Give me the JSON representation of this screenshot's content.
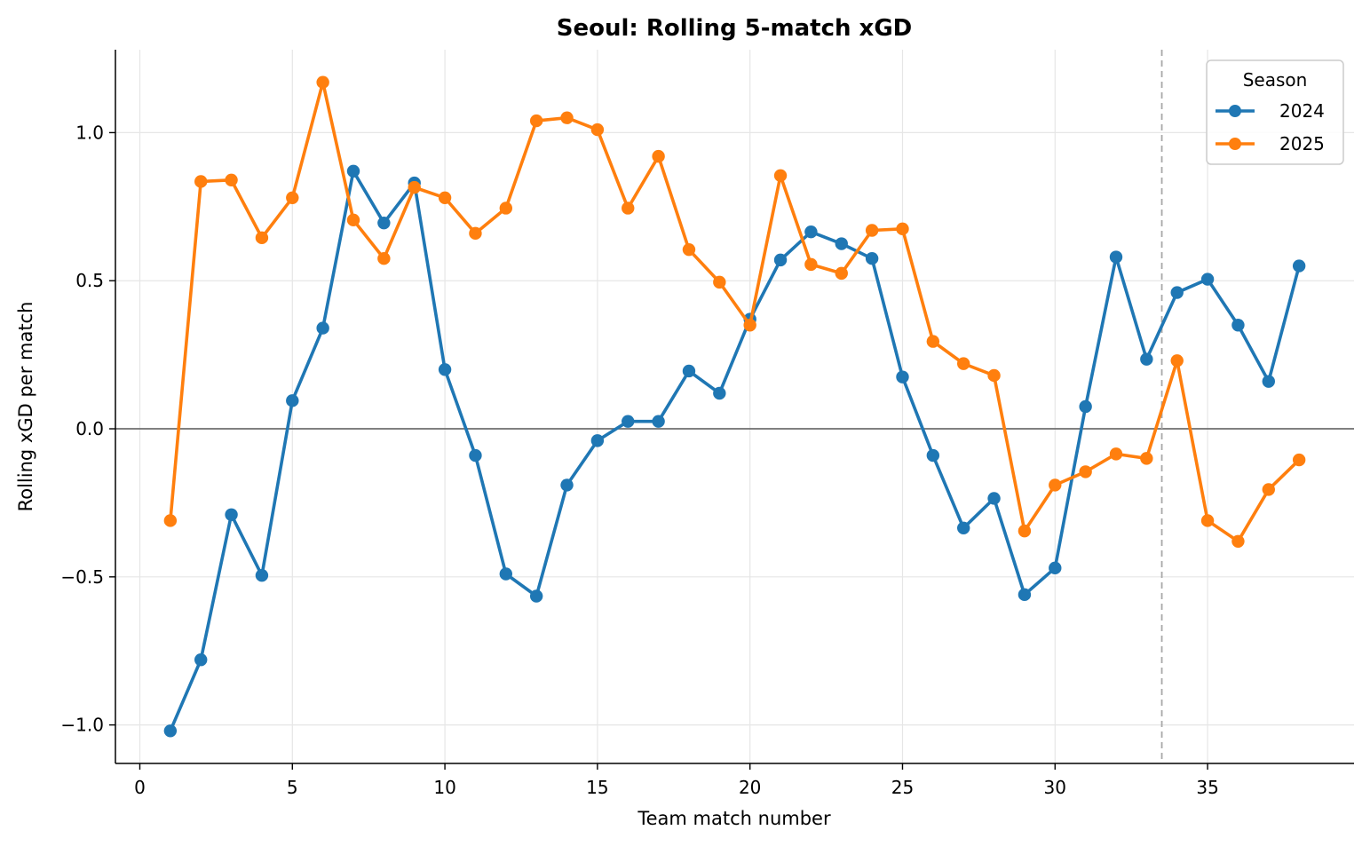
{
  "chart_data": {
    "type": "line",
    "title": "Seoul: Rolling 5-match xGD",
    "xlabel": "Team match number",
    "ylabel": "Rolling xGD per match",
    "xlim": [
      -0.8,
      39.8
    ],
    "ylim": [
      -1.13,
      1.28
    ],
    "xticks": [
      0,
      5,
      10,
      15,
      20,
      25,
      30,
      35
    ],
    "xtick_labels": [
      "0",
      "5",
      "10",
      "15",
      "20",
      "25",
      "30",
      "35"
    ],
    "yticks": [
      -1.0,
      -0.5,
      0.0,
      0.5,
      1.0
    ],
    "ytick_labels": [
      "−1.0",
      "−0.5",
      "0.0",
      "0.5",
      "1.0"
    ],
    "grid": true,
    "reference_lines": {
      "horizontal_zero": 0.0,
      "vertical_dashed_x": 33.5
    },
    "legend": {
      "title": "Season",
      "position": "top-right"
    },
    "series": [
      {
        "name": "2024",
        "color": "#1f77b4",
        "x": [
          1,
          2,
          3,
          4,
          5,
          6,
          7,
          8,
          9,
          10,
          11,
          12,
          13,
          14,
          15,
          16,
          17,
          18,
          19,
          20,
          21,
          22,
          23,
          24,
          25,
          26,
          27,
          28,
          29,
          30,
          31,
          32,
          33,
          34,
          35,
          36,
          37,
          38
        ],
        "values": [
          -1.02,
          -0.78,
          -0.29,
          -0.495,
          0.095,
          0.34,
          0.87,
          0.695,
          0.83,
          0.2,
          -0.09,
          -0.49,
          -0.565,
          -0.19,
          -0.04,
          0.025,
          0.025,
          0.195,
          0.12,
          0.37,
          0.57,
          0.665,
          0.625,
          0.575,
          0.175,
          -0.09,
          -0.335,
          -0.235,
          -0.56,
          -0.47,
          0.075,
          0.58,
          0.235,
          0.46,
          0.505,
          0.35,
          0.16,
          0.55
        ]
      },
      {
        "name": "2025",
        "color": "#ff7f0e",
        "x": [
          1,
          2,
          3,
          4,
          5,
          6,
          7,
          8,
          9,
          10,
          11,
          12,
          13,
          14,
          15,
          16,
          17,
          18,
          19,
          20,
          21,
          22,
          23,
          24,
          25,
          26,
          27,
          28,
          29,
          30,
          31,
          32,
          33,
          34,
          35,
          36,
          37,
          38
        ],
        "values": [
          -0.31,
          0.835,
          0.84,
          0.645,
          0.78,
          1.17,
          0.705,
          0.575,
          0.815,
          0.78,
          0.66,
          0.745,
          1.04,
          1.05,
          1.01,
          0.745,
          0.92,
          0.605,
          0.495,
          0.35,
          0.855,
          0.555,
          0.525,
          0.67,
          0.675,
          0.295,
          0.22,
          0.18,
          -0.345,
          -0.19,
          -0.145,
          -0.085,
          -0.1,
          0.23,
          -0.31,
          -0.38,
          -0.205,
          -0.105
        ]
      }
    ]
  }
}
